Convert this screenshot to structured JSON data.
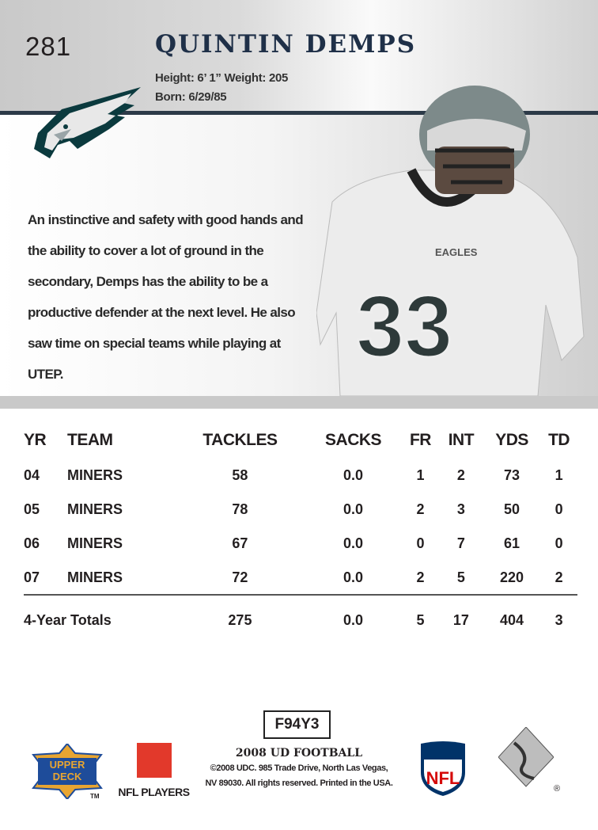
{
  "card": {
    "number": "281",
    "player_name": "QUINTIN DEMPS",
    "height_weight": "Height: 6’ 1” Weight: 205",
    "born": "Born: 6/29/85",
    "jersey_number": "33",
    "jersey_wordmark": "EAGLES",
    "bio": "An instinctive and safety with good hands and the ability to cover a lot of ground in the secondary, Demps has the ability to be a productive defender at the next level. He also saw time on special teams while playing at UTEP."
  },
  "stats": {
    "headers": [
      "YR",
      "TEAM",
      "TACKLES",
      "SACKS",
      "FR",
      "INT",
      "YDS",
      "TD"
    ],
    "rows": [
      [
        "04",
        "MINERS",
        "58",
        "0.0",
        "1",
        "2",
        "73",
        "1"
      ],
      [
        "05",
        "MINERS",
        "78",
        "0.0",
        "2",
        "3",
        "50",
        "0"
      ],
      [
        "06",
        "MINERS",
        "67",
        "0.0",
        "0",
        "7",
        "61",
        "0"
      ],
      [
        "07",
        "MINERS",
        "72",
        "0.0",
        "2",
        "5",
        "220",
        "2"
      ]
    ],
    "totals": [
      "4-Year Totals",
      "275",
      "0.0",
      "5",
      "17",
      "404",
      "3"
    ]
  },
  "footer": {
    "code": "F94Y3",
    "set_name": "2008 UD FOOTBALL",
    "copyright_line1": "©2008 UDC. 985 Trade Drive, North Las Vegas,",
    "copyright_line2": "NV 89030. All rights reserved. Printed in the USA.",
    "upper_deck_logo": "UPPER DECK",
    "tm": "TM",
    "nfl_players": "NFL PLAYERS",
    "nfl_logo": "NFL",
    "registered": "®"
  },
  "colors": {
    "name": "#1f3048",
    "rule": "#2c3a48",
    "eagles_green": "#004c54",
    "nfl_blue": "#013369",
    "nfl_red": "#d50a0a",
    "ud_blue": "#1e4c9a",
    "ud_gold": "#e8a531"
  }
}
